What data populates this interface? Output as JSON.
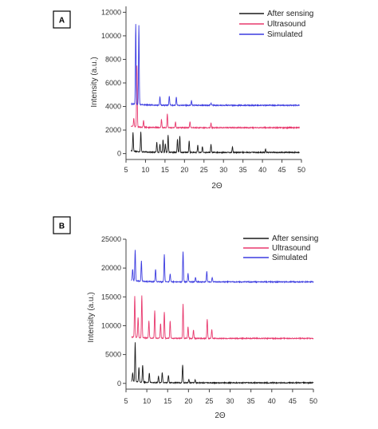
{
  "chart_data": [
    {
      "type": "line",
      "panel_label": "A",
      "xlabel": "2Θ",
      "ylabel": "Intensity (a.u.)",
      "xlim": [
        5,
        50
      ],
      "ylim": [
        -500,
        12500
      ],
      "xticks": [
        5,
        10,
        15,
        20,
        25,
        30,
        35,
        40,
        45,
        50
      ],
      "yticks": [
        0,
        2000,
        4000,
        6000,
        8000,
        10000,
        12000
      ],
      "ytick_labels": [
        "0",
        "2000",
        "4000",
        "6000",
        "8000",
        "10000",
        "12000"
      ],
      "legend": "top-right",
      "series": [
        {
          "name": "After sensing",
          "color": "#1a1a1a",
          "baseline": 100,
          "x_end": 49.5,
          "peaks": [
            [
              6.8,
              1600
            ],
            [
              8.8,
              1700
            ],
            [
              12.9,
              900
            ],
            [
              13.7,
              700
            ],
            [
              14.5,
              1100
            ],
            [
              15.1,
              700
            ],
            [
              15.8,
              1500
            ],
            [
              18.2,
              1100
            ],
            [
              18.8,
              1400
            ],
            [
              21.2,
              1000
            ],
            [
              23.4,
              600
            ],
            [
              24.6,
              500
            ],
            [
              26.8,
              700
            ],
            [
              32.3,
              500
            ],
            [
              40.8,
              300
            ]
          ]
        },
        {
          "name": "Ultrasound",
          "color": "#e8386d",
          "baseline": 2200,
          "x_end": 49.5,
          "peaks": [
            [
              7.0,
              700
            ],
            [
              7.8,
              5200
            ],
            [
              9.5,
              600
            ],
            [
              14.1,
              700
            ],
            [
              15.6,
              1200
            ],
            [
              17.7,
              500
            ],
            [
              21.4,
              500
            ],
            [
              26.8,
              400
            ]
          ]
        },
        {
          "name": "Simulated",
          "color": "#3b3be0",
          "baseline": 4100,
          "x_end": 49.5,
          "peaks": [
            [
              7.5,
              6800
            ],
            [
              8.3,
              6700
            ],
            [
              13.7,
              700
            ],
            [
              16.1,
              800
            ],
            [
              17.9,
              700
            ],
            [
              21.8,
              400
            ],
            [
              26.8,
              200
            ]
          ]
        }
      ]
    },
    {
      "type": "line",
      "panel_label": "B",
      "xlabel": "2Θ",
      "ylabel": "Intensity (a.u.)",
      "xlim": [
        5,
        50
      ],
      "ylim": [
        -1000,
        25000
      ],
      "xticks": [
        5,
        10,
        15,
        20,
        25,
        30,
        35,
        40,
        45,
        50
      ],
      "yticks": [
        0,
        5000,
        10000,
        15000,
        20000,
        25000
      ],
      "ytick_labels": [
        "0",
        "5000",
        "10000",
        "15000",
        "20000",
        "25000"
      ],
      "legend": "top-right",
      "series": [
        {
          "name": "After sensing",
          "color": "#1a1a1a",
          "baseline": 100,
          "x_end": 50,
          "peaks": [
            [
              6.6,
              1500
            ],
            [
              7.2,
              6800
            ],
            [
              8.1,
              2500
            ],
            [
              9.0,
              3000
            ],
            [
              10.6,
              1600
            ],
            [
              12.8,
              1100
            ],
            [
              13.7,
              1800
            ],
            [
              15.2,
              1300
            ],
            [
              18.6,
              3100
            ],
            [
              20.1,
              600
            ],
            [
              21.6,
              500
            ]
          ]
        },
        {
          "name": "Ultrasound",
          "color": "#e8386d",
          "baseline": 7800,
          "x_end": 50,
          "peaks": [
            [
              7.1,
              7200
            ],
            [
              7.9,
              3500
            ],
            [
              8.8,
              7300
            ],
            [
              10.5,
              3000
            ],
            [
              11.9,
              4800
            ],
            [
              13.3,
              2600
            ],
            [
              14.2,
              4600
            ],
            [
              15.6,
              3000
            ],
            [
              18.7,
              6000
            ],
            [
              19.9,
              2000
            ],
            [
              21.2,
              1500
            ],
            [
              24.5,
              3400
            ],
            [
              25.6,
              1500
            ]
          ]
        },
        {
          "name": "Simulated",
          "color": "#3b3be0",
          "baseline": 17600,
          "x_end": 50,
          "peaks": [
            [
              6.6,
              2000
            ],
            [
              7.2,
              5300
            ],
            [
              8.7,
              3500
            ],
            [
              12.1,
              2200
            ],
            [
              14.2,
              4700
            ],
            [
              15.6,
              1400
            ],
            [
              18.7,
              5300
            ],
            [
              19.9,
              1500
            ],
            [
              21.7,
              800
            ],
            [
              24.4,
              1800
            ],
            [
              25.7,
              800
            ]
          ]
        }
      ]
    }
  ]
}
